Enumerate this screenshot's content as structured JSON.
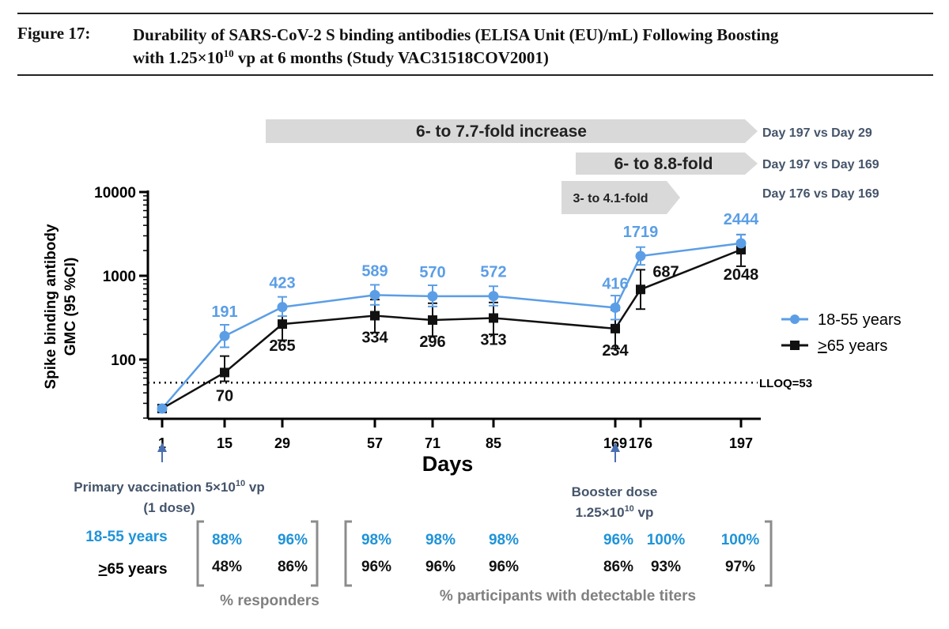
{
  "figure": {
    "label": "Figure 17:",
    "title_line1": "Durability of SARS-CoV-2 S binding antibodies (ELISA Unit (EU)/mL) Following Boosting",
    "title_line2_prefix": "with 1.25×10",
    "title_line2_sup": "10",
    "title_line2_suffix": " vp at 6 months (Study VAC31518COV2001)"
  },
  "colors": {
    "young": "#5b9ee6",
    "old": "#111111",
    "young_text": "#1f93d8",
    "arrow_fill": "#d9d9d9",
    "annotation_text": "#44546a",
    "bracket": "#8c8c8c",
    "footer_text": "#808080",
    "blue_arrow": "#4a6fb0"
  },
  "fold_arrows": [
    {
      "label": "6- to 7.7-fold increase",
      "comparison": "Day 197 vs Day 29"
    },
    {
      "label": "6- to 8.8-fold",
      "comparison": "Day 197 vs Day 169"
    },
    {
      "label": "3- to 4.1-fold",
      "comparison": "Day 176 vs Day 169"
    }
  ],
  "annotations": {
    "lloq": "LLOQ=53",
    "primary_line1_prefix": "Primary vaccination 5×10",
    "primary_line1_sup": "10",
    "primary_line1_suffix": " vp",
    "primary_line2": "(1 dose)",
    "booster_line1": "Booster dose",
    "booster_line2_prefix": "1.25×10",
    "booster_line2_sup": "10",
    "booster_line2_suffix": " vp"
  },
  "chart_data": {
    "type": "line",
    "xlabel": "Days",
    "ylabel": "Spike binding antibody GMC (95 %CI)",
    "yscale": "log",
    "ylim": [
      20,
      10000
    ],
    "yticks": [
      "100",
      "1000",
      "10000"
    ],
    "lloq": 53,
    "categories": [
      "1",
      "15",
      "29",
      "57",
      "71",
      "85",
      "169",
      "176",
      "197"
    ],
    "series": [
      {
        "name": "18-55 years",
        "color": "#5b9ee6",
        "marker": "circle",
        "values": [
          26,
          191,
          423,
          589,
          570,
          572,
          416,
          1719,
          2444
        ],
        "labels": [
          "",
          "191",
          "423",
          "589",
          "570",
          "572",
          "416",
          "1719",
          "2444"
        ],
        "ci_low": [
          26,
          140,
          330,
          450,
          430,
          440,
          300,
          1350,
          1950
        ],
        "ci_high": [
          26,
          260,
          560,
          780,
          770,
          750,
          580,
          2200,
          3100
        ]
      },
      {
        "name": ">65 years",
        "color": "#111111",
        "marker": "square",
        "values": [
          26,
          70,
          265,
          334,
          296,
          313,
          234,
          687,
          2048
        ],
        "labels": [
          "",
          "70",
          "265",
          "334",
          "296",
          "313",
          "234",
          "687",
          "2048"
        ],
        "ci_low": [
          26,
          55,
          170,
          210,
          190,
          200,
          135,
          400,
          1300
        ],
        "ci_high": [
          26,
          110,
          420,
          520,
          470,
          480,
          390,
          1180,
          3100
        ]
      }
    ],
    "legend": {
      "position": "right",
      "items": [
        {
          "label": "18-55 years",
          "marker": "circle"
        },
        {
          "label_underlined": ">",
          "label_rest": "65 years",
          "marker": "square"
        }
      ]
    }
  },
  "footer_table": {
    "rows": [
      {
        "label": "18-55 years",
        "values": [
          "88%",
          "96%",
          "98%",
          "98%",
          "98%",
          "96%",
          "100%",
          "100%"
        ]
      },
      {
        "label_underlined": ">",
        "label_rest": "65 years",
        "values": [
          "48%",
          "86%",
          "96%",
          "96%",
          "96%",
          "86%",
          "93%",
          "97%"
        ]
      }
    ],
    "caption_responders": "% responders",
    "caption_detectable": "% participants with detectable titers"
  }
}
